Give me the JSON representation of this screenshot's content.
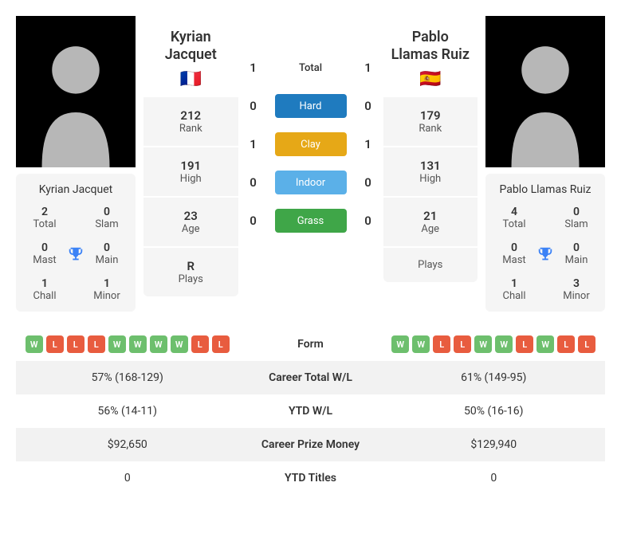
{
  "players": [
    {
      "name": "Kyrian Jacquet",
      "flag": "🇫🇷",
      "rank": "212",
      "high": "191",
      "age": "23",
      "plays": "R",
      "titles": {
        "total": "2",
        "slam": "0",
        "mast": "0",
        "main": "0",
        "chall": "1",
        "minor": "1"
      },
      "form": [
        "W",
        "L",
        "L",
        "L",
        "W",
        "W",
        "W",
        "W",
        "L",
        "L"
      ],
      "career_wl": "57% (168-129)",
      "ytd_wl": "56% (14-11)",
      "prize": "$92,650",
      "ytd_titles": "0"
    },
    {
      "name": "Pablo Llamas Ruiz",
      "flag": "🇪🇸",
      "rank": "179",
      "high": "131",
      "age": "21",
      "plays": "",
      "titles": {
        "total": "4",
        "slam": "0",
        "mast": "0",
        "main": "0",
        "chall": "1",
        "minor": "3"
      },
      "form": [
        "W",
        "W",
        "L",
        "L",
        "W",
        "W",
        "L",
        "W",
        "L",
        "L"
      ],
      "career_wl": "61% (149-95)",
      "ytd_wl": "50% (16-16)",
      "prize": "$129,940",
      "ytd_titles": "0"
    }
  ],
  "labels": {
    "rank": "Rank",
    "high": "High",
    "age": "Age",
    "plays": "Plays",
    "total": "Total",
    "slam": "Slam",
    "mast": "Mast",
    "main": "Main",
    "chall": "Chall",
    "minor": "Minor",
    "form": "Form",
    "career_wl": "Career Total W/L",
    "ytd_wl": "YTD W/L",
    "prize": "Career Prize Money",
    "ytd_titles": "YTD Titles"
  },
  "h2h": {
    "total": {
      "label": "Total",
      "p1": "1",
      "p2": "1"
    },
    "hard": {
      "label": "Hard",
      "p1": "0",
      "p2": "0",
      "color": "#1f7bbf"
    },
    "clay": {
      "label": "Clay",
      "p1": "1",
      "p2": "1",
      "color": "#e6a817"
    },
    "indoor": {
      "label": "Indoor",
      "p1": "0",
      "p2": "0",
      "color": "#5bb0e8"
    },
    "grass": {
      "label": "Grass",
      "p1": "0",
      "p2": "0",
      "color": "#3fa648"
    }
  },
  "colors": {
    "win_badge": "#6dbf6d",
    "loss_badge": "#e85c3f",
    "trophy": "#3b82f6",
    "row_alt": "#f2f2f2",
    "stat_bg": "#f5f5f5"
  }
}
